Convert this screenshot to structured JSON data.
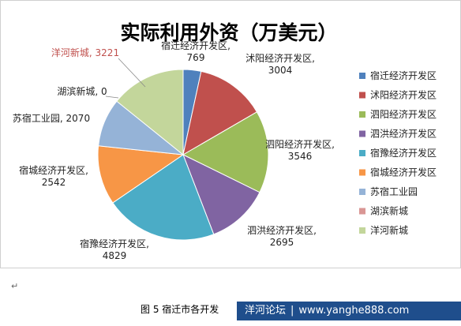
{
  "chart_data": {
    "type": "pie",
    "title": "实际利用外资（万美元）",
    "categories": [
      "宿迁经济开发区",
      "沭阳经济开发区",
      "泗阳经济开发区",
      "泗洪经济开发区",
      "宿豫经济开发区",
      "宿城经济开发区",
      "苏宿工业园",
      "湖滨新城",
      "洋河新城"
    ],
    "values": [
      769,
      3004,
      3546,
      2695,
      4829,
      2542,
      2070,
      0,
      3221
    ],
    "colors": [
      "#4f81bd",
      "#c0504d",
      "#9bbb59",
      "#8064a2",
      "#4bacc6",
      "#f79646",
      "#95b3d7",
      "#d99694",
      "#c3d69b"
    ],
    "data_labels": [
      {
        "name": "宿迁经济开发区,",
        "value": "769"
      },
      {
        "name": "沭阳经济开发区,",
        "value": "3004"
      },
      {
        "name": "泗阳经济开发区,",
        "value": "3546"
      },
      {
        "name": "泗洪经济开发区,",
        "value": "2695"
      },
      {
        "name": "宿豫经济开发区,",
        "value": "4829"
      },
      {
        "name": "宿城经济开发区,",
        "value": "2542"
      },
      {
        "name": "苏宿工业园, 2070",
        "value": ""
      },
      {
        "name": "湖滨新城, 0",
        "value": ""
      },
      {
        "name": "洋河新城, 3221",
        "value": ""
      }
    ],
    "legend_position": "right"
  },
  "para_mark": "↵",
  "caption": "图 5  宿迁市各开发",
  "watermark": {
    "site": "洋河论坛",
    "separator": "|",
    "url": "www.yanghe888.com"
  }
}
